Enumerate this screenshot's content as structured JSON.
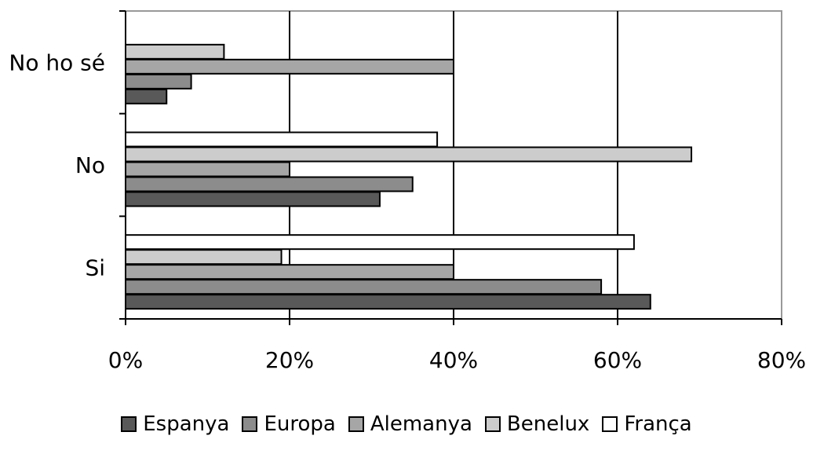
{
  "chart_data": {
    "type": "bar",
    "orientation": "horizontal",
    "categories": [
      "Si",
      "No",
      "No ho sé"
    ],
    "series": [
      {
        "name": "Espanya",
        "color": "#595959",
        "values": [
          64,
          31,
          5
        ]
      },
      {
        "name": "Europa",
        "color": "#8c8c8c",
        "values": [
          58,
          35,
          8
        ]
      },
      {
        "name": "Alemanya",
        "color": "#a6a6a6",
        "values": [
          40,
          20,
          40
        ]
      },
      {
        "name": "Benelux",
        "color": "#cccccc",
        "values": [
          19,
          69,
          12
        ]
      },
      {
        "name": "França",
        "color": "#ffffff",
        "values": [
          62,
          38,
          null
        ]
      }
    ],
    "xlim": [
      0,
      80
    ],
    "xticks": [
      "0%",
      "20%",
      "40%",
      "60%",
      "80%"
    ],
    "grid": "vertical",
    "legend_position": "bottom",
    "title": "",
    "xlabel": "",
    "ylabel": ""
  }
}
